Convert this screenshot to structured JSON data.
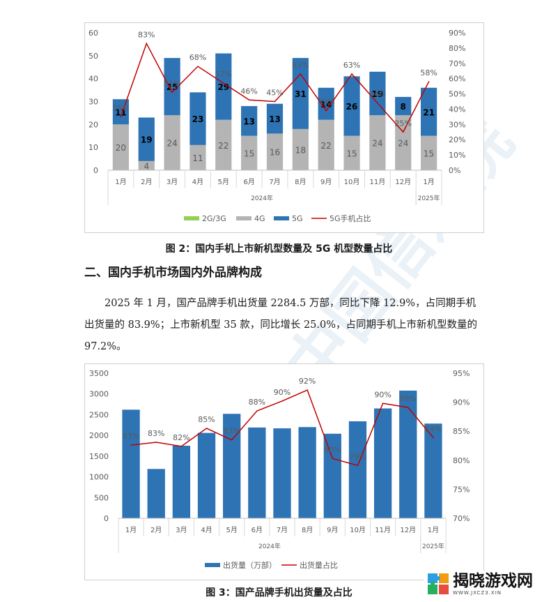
{
  "chart_data": [
    {
      "type": "bar",
      "subtype": "stacked-bar-with-line",
      "categories": [
        "1月",
        "2月",
        "3月",
        "4月",
        "5月",
        "6月",
        "7月",
        "8月",
        "9月",
        "10月",
        "11月",
        "12月",
        "1月"
      ],
      "groups": [
        {
          "label": "2024年",
          "from": 0,
          "to": 11
        },
        {
          "label": "2025年",
          "from": 12,
          "to": 12
        }
      ],
      "series": [
        {
          "name": "2G/3G",
          "kind": "bar",
          "color": "#92d050",
          "values": [
            0,
            0,
            0,
            0,
            0,
            0,
            0,
            0,
            0,
            0,
            0,
            0,
            0
          ]
        },
        {
          "name": "4G",
          "kind": "bar",
          "color": "#b4b4b4",
          "values": [
            20,
            4,
            24,
            11,
            22,
            15,
            16,
            18,
            22,
            15,
            24,
            24,
            15
          ]
        },
        {
          "name": "5G",
          "kind": "bar",
          "color": "#2e74b5",
          "values": [
            11,
            19,
            25,
            23,
            29,
            13,
            13,
            31,
            14,
            26,
            19,
            8,
            21
          ]
        },
        {
          "name": "5G手机占比",
          "kind": "line",
          "axis": "right",
          "color": "#c00000",
          "values": [
            0.35,
            0.83,
            0.51,
            0.68,
            0.57,
            0.46,
            0.45,
            0.63,
            0.39,
            0.63,
            0.44,
            0.25,
            0.58
          ]
        }
      ],
      "line_labels": [
        "35%",
        "83%",
        "51%",
        "68%",
        "57%",
        "46%",
        "45%",
        "63%",
        "39%",
        "63%",
        "44%",
        "25%",
        "58%"
      ],
      "ylim": [
        0,
        60
      ],
      "yticks": [
        "0",
        "10",
        "20",
        "30",
        "40",
        "50",
        "60"
      ],
      "y2lim": [
        0,
        0.9
      ],
      "y2ticks": [
        "0%",
        "10%",
        "20%",
        "30%",
        "40%",
        "50%",
        "60%",
        "70%",
        "80%",
        "90%"
      ],
      "legend": "bottom",
      "grid": false
    },
    {
      "type": "bar",
      "subtype": "bar-with-line",
      "categories": [
        "1月",
        "2月",
        "3月",
        "4月",
        "5月",
        "6月",
        "7月",
        "8月",
        "9月",
        "10月",
        "11月",
        "12月",
        "1月"
      ],
      "groups": [
        {
          "label": "2024年",
          "from": 0,
          "to": 11
        },
        {
          "label": "2025年",
          "from": 12,
          "to": 12
        }
      ],
      "series": [
        {
          "name": "出货量（万部）",
          "kind": "bar",
          "color": "#2e74b5",
          "values": [
            2620,
            1190,
            1750,
            2060,
            2520,
            2190,
            2170,
            2200,
            2040,
            2340,
            2650,
            3080,
            2284.5
          ]
        },
        {
          "name": "出货量占比",
          "kind": "line",
          "axis": "right",
          "color": "#c00000",
          "values": [
            0.826,
            0.831,
            0.824,
            0.855,
            0.835,
            0.885,
            0.902,
            0.921,
            0.803,
            0.791,
            0.898,
            0.891,
            0.839
          ]
        }
      ],
      "line_labels": [
        "83%",
        "83%",
        "82%",
        "85%",
        "83%",
        "88%",
        "90%",
        "92%",
        "80%",
        "79%",
        "90%",
        "89%",
        "84%"
      ],
      "ylim": [
        0,
        3500
      ],
      "yticks": [
        "0",
        "500",
        "1000",
        "1500",
        "2000",
        "2500",
        "3000",
        "3500"
      ],
      "y2lim": [
        0.7,
        0.95
      ],
      "y2ticks": [
        "70%",
        "75%",
        "80%",
        "85%",
        "90%",
        "95%"
      ],
      "legend": "bottom",
      "grid": false
    }
  ],
  "captions": {
    "fig2": "图 2：国内手机上市新机型数量及 5G 机型数量占比",
    "fig3": "图 3：国产品牌手机出货量及占比"
  },
  "section_heading": "二、国内手机市场国内外品牌构成",
  "paragraph": "2025 年 1 月，国产品牌手机出货量 2284.5 万部，同比下降 12.9%，占同期手机出货量的 83.9%；上市新机型 35 款，同比增长 25.0%，占同期手机上市新机型数量的 97.2%。",
  "watermark": {
    "name": "揭晓游戏网",
    "sub": "WWW.JXCZ3.XIN",
    "background_text": "CAICT 中国信通院"
  }
}
